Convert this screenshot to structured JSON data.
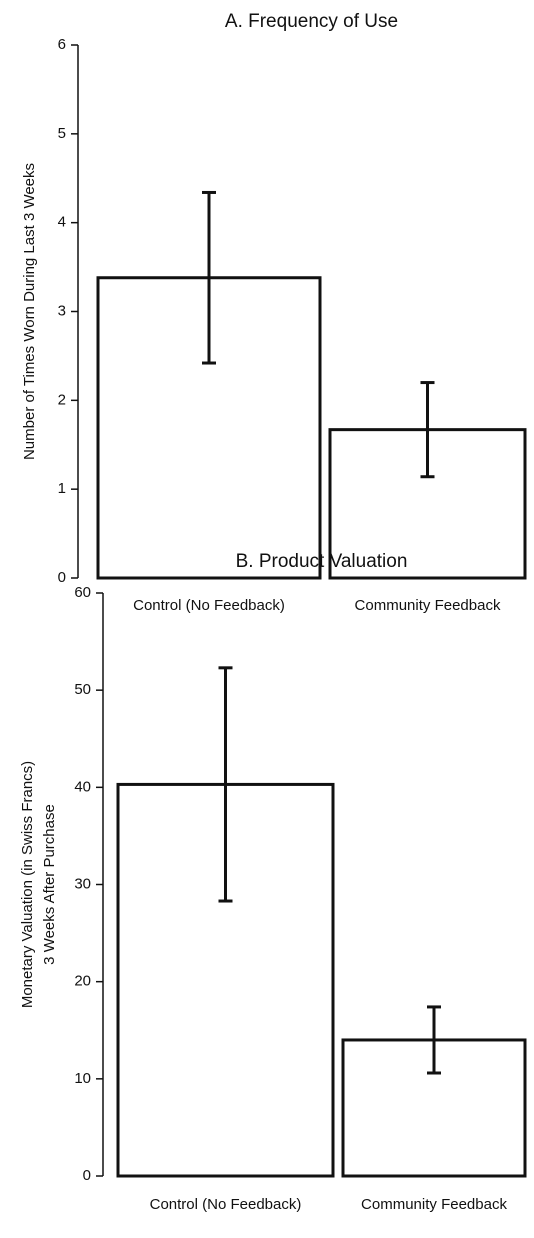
{
  "chart_data": [
    {
      "type": "bar",
      "title": "A. Frequency of Use",
      "ylabel": [
        "Number of Times Worn During Last 3 Weeks"
      ],
      "categories": [
        "Control (No Feedback)",
        "Community Feedback"
      ],
      "values": [
        3.38,
        1.67
      ],
      "errors": [
        0.96,
        0.53
      ],
      "color": "#ffffff",
      "ylim": [
        0,
        6
      ],
      "yticks": [
        0,
        1,
        2,
        3,
        4,
        5,
        6
      ],
      "grid": false
    },
    {
      "type": "bar",
      "title": "B. Product Valuation",
      "ylabel": [
        "Monetary Valuation (in Swiss Francs)",
        "3 Weeks After Purchase"
      ],
      "categories": [
        "Control (No Feedback)",
        "Community Feedback"
      ],
      "values": [
        40.3,
        14
      ],
      "errors": [
        12,
        3.4
      ],
      "color": "#ffffff",
      "ylim": [
        0,
        60
      ],
      "yticks": [
        0,
        10,
        20,
        30,
        40,
        50,
        60
      ],
      "grid": false
    }
  ]
}
